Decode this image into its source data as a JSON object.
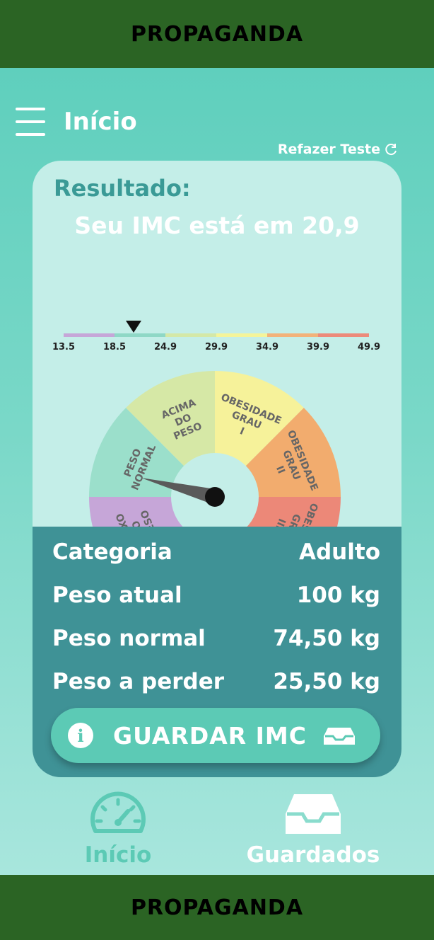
{
  "ads": {
    "top": "PROPAGANDA",
    "bottom": "PROPAGANDA"
  },
  "header": {
    "title": "Início",
    "redo_label": "Refazer Teste"
  },
  "result": {
    "label": "Resultado:",
    "imc_text": "Seu IMC está em 20,9",
    "imc_value": 20.9,
    "scale_ticks": [
      "13.5",
      "18.5",
      "24.9",
      "29.9",
      "34.9",
      "39.9",
      "49.9"
    ],
    "scale_colors": [
      "#c6a6d8",
      "#8fd8c6",
      "#d4e8a8",
      "#f4f49a",
      "#f2b27a",
      "#ec8a7a"
    ]
  },
  "gauge": {
    "segments": [
      {
        "lines": [
          "ABAIXO",
          "DO",
          "PESO"
        ],
        "color": "#c6a6d8"
      },
      {
        "lines": [
          "PESO",
          "NORMAL"
        ],
        "color": "#9bdfcb"
      },
      {
        "lines": [
          "ACIMA",
          "DO",
          "PESO"
        ],
        "color": "#d6e8a6"
      },
      {
        "lines": [
          "OBESIDADE",
          "GRAU",
          "I"
        ],
        "color": "#f6f29a"
      },
      {
        "lines": [
          "OBESIDADE",
          "GRAU",
          "II"
        ],
        "color": "#f2ac6e"
      },
      {
        "lines": [
          "OBESIDADE",
          "GRAU",
          "III"
        ],
        "color": "#ec8878"
      }
    ]
  },
  "stats": [
    {
      "label": "Categoria",
      "value": "Adulto"
    },
    {
      "label": "Peso atual",
      "value": "100 kg"
    },
    {
      "label": "Peso normal",
      "value": "74,50 kg"
    },
    {
      "label": "Peso a perder",
      "value": "25,50 kg"
    }
  ],
  "save_button": {
    "label": "GUARDAR IMC",
    "info_icon": "i"
  },
  "bottom_nav": {
    "home": {
      "label": "Início",
      "icon": "speedometer-icon",
      "color": "#5ccab5"
    },
    "saved": {
      "label": "Guardados",
      "icon": "inbox-tray-icon",
      "color": "#ffffff"
    }
  }
}
